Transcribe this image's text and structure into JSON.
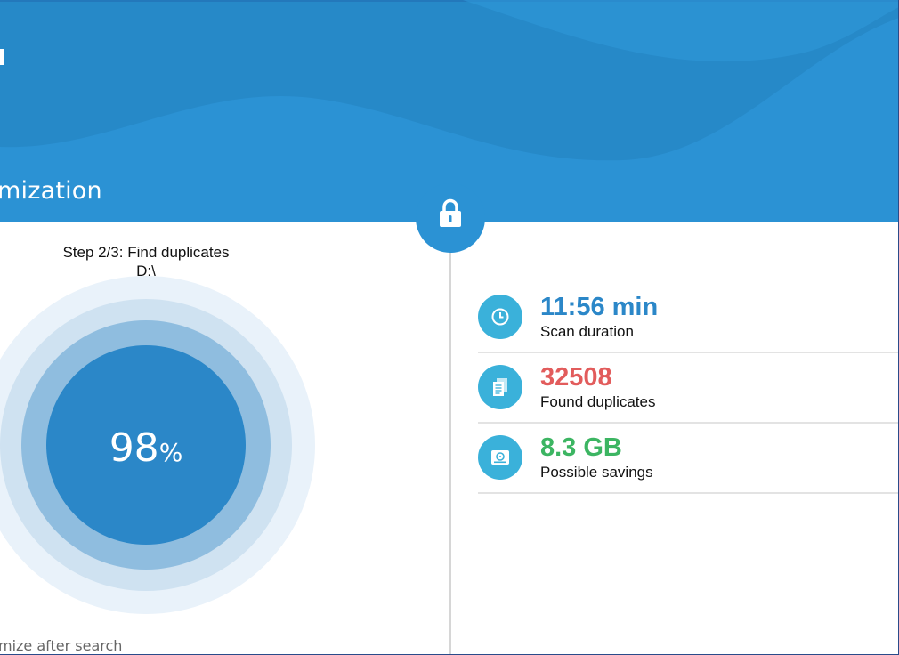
{
  "header": {
    "title": "mization"
  },
  "progress": {
    "step_text": "Step 2/3: Find duplicates",
    "path": "D:\\",
    "percent_value": "98",
    "percent_sign": "%",
    "fraction": 0.98
  },
  "footer": {
    "hint": "mize after search"
  },
  "stats": [
    {
      "value": "11:56 min",
      "label": "Scan duration",
      "icon": "clock-icon",
      "color": "#2b87c8"
    },
    {
      "value": "32508",
      "label": "Found duplicates",
      "icon": "documents-icon",
      "color": "#e25c5c"
    },
    {
      "value": "8.3 GB",
      "label": "Possible savings",
      "icon": "hard-drive-icon",
      "color": "#3cb562"
    }
  ],
  "colors": {
    "accent": "#2b92d4",
    "icon_bg": "#3ab1da"
  }
}
